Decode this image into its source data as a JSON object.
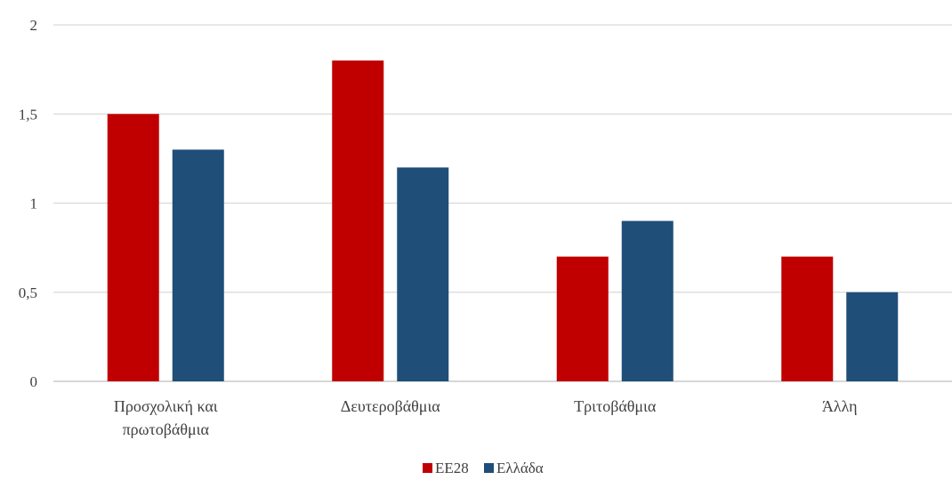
{
  "chart_data": {
    "type": "bar",
    "categories": [
      [
        "Προσχολική και",
        "πρωτοβάθμια"
      ],
      [
        "Δευτεροβάθμια"
      ],
      [
        "Τριτοβάθμια"
      ],
      [
        "Άλλη"
      ]
    ],
    "series": [
      {
        "name": "ΕΕ28",
        "color": "#c00000",
        "values": [
          1.5,
          1.8,
          0.7,
          0.7
        ]
      },
      {
        "name": "Ελλάδα",
        "color": "#1f4e79",
        "values": [
          1.3,
          1.2,
          0.9,
          0.5
        ]
      }
    ],
    "yticks": [
      "0",
      "0,5",
      "1",
      "1,5",
      "2"
    ],
    "ytick_values": [
      0,
      0.5,
      1,
      1.5,
      2
    ],
    "ylim": [
      0,
      2
    ],
    "grid": true,
    "legend": "bottom-center",
    "title": "",
    "xlabel": "",
    "ylabel": ""
  }
}
